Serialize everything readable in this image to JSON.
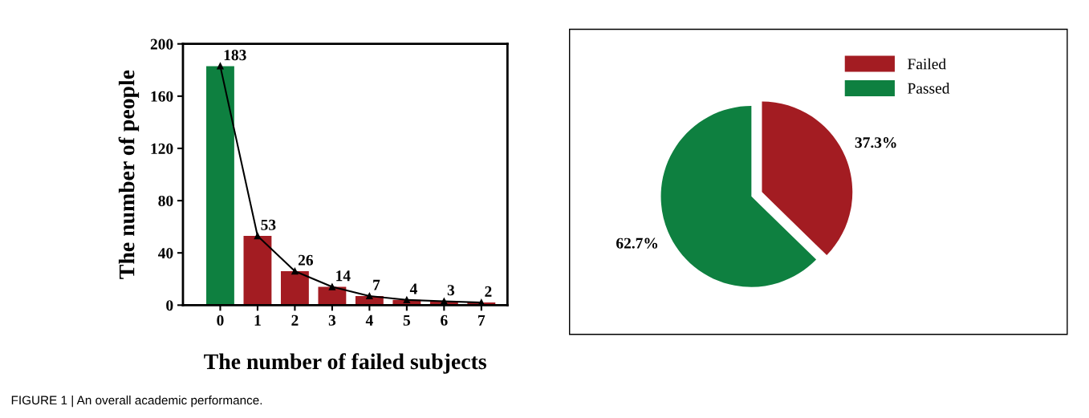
{
  "chart_data": [
    {
      "type": "bar",
      "xlabel": "The number of failed subjects",
      "ylabel": "The number of people",
      "categories": [
        "0",
        "1",
        "2",
        "3",
        "4",
        "5",
        "6",
        "7"
      ],
      "series": [
        {
          "type": "bar",
          "colors": [
            "#0e8040",
            "#a31c22",
            "#a31c22",
            "#a31c22",
            "#a31c22",
            "#a31c22",
            "#a31c22",
            "#a31c22"
          ],
          "values": [
            183,
            53,
            26,
            14,
            7,
            4,
            3,
            2
          ]
        },
        {
          "type": "line",
          "color": "#000000",
          "marker": "triangle",
          "values": [
            183,
            53,
            26,
            14,
            7,
            4,
            3,
            2
          ],
          "data_labels": true
        }
      ],
      "ylim": [
        0,
        200
      ],
      "yticks": [
        0,
        40,
        80,
        120,
        160,
        200
      ],
      "grid": false,
      "annotations": [
        "FIGURE 1 | An overall academic performance."
      ]
    },
    {
      "type": "pie",
      "categories": [
        "Failed",
        "Passed"
      ],
      "values": [
        37.3,
        62.7
      ],
      "colors": [
        "#a31c22",
        "#0e8040"
      ],
      "value_labels": [
        "37.3%",
        "62.7%"
      ],
      "legend": "top right"
    }
  ]
}
